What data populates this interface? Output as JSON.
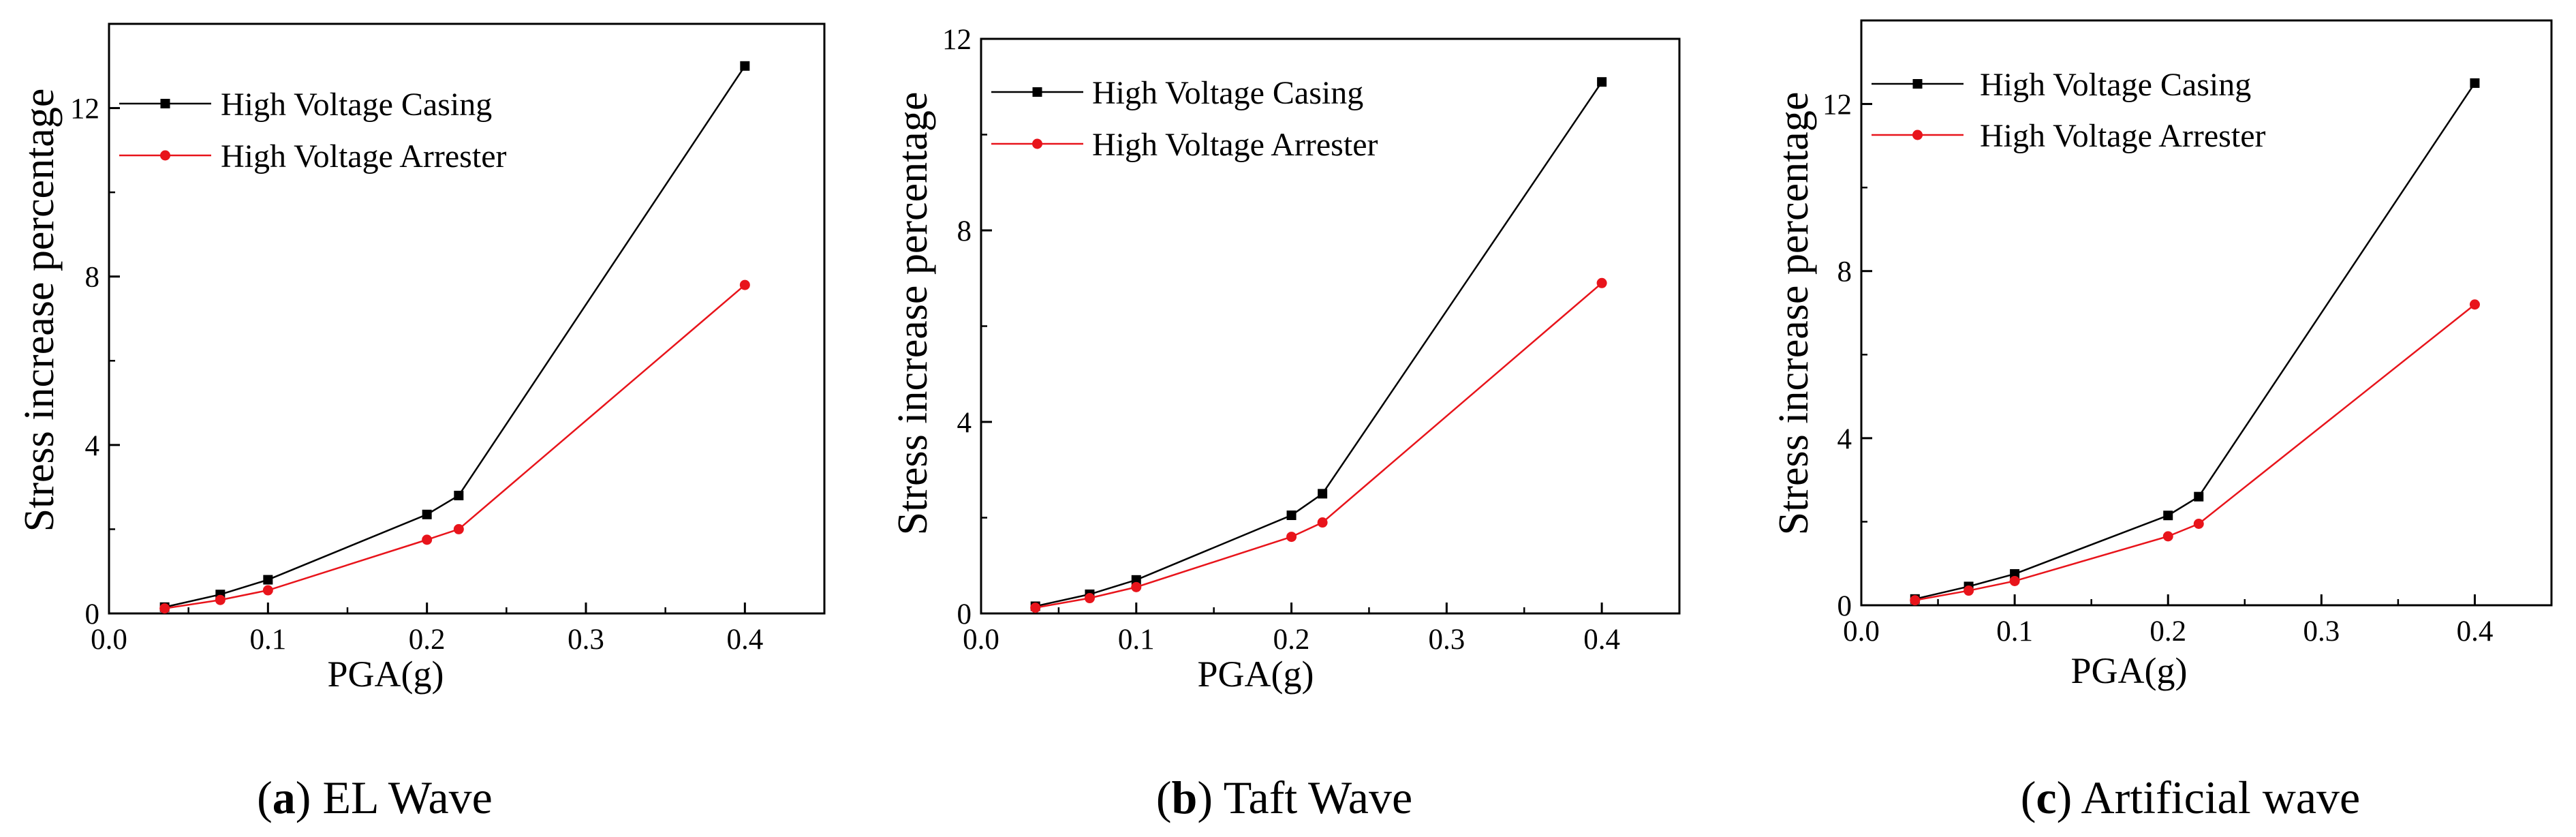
{
  "chart_data": [
    {
      "type": "line",
      "caption_letter": "a",
      "caption_text": "EL Wave",
      "xlabel": "PGA(g)",
      "ylabel": "Stress increase percentage",
      "xlim": [
        0.0,
        0.45
      ],
      "ylim": [
        0,
        14
      ],
      "xticks": [
        "0.0",
        "0.1",
        "0.2",
        "0.3",
        "0.4"
      ],
      "yticks": [
        "0",
        "4",
        "8",
        "12"
      ],
      "x": [
        0.035,
        0.07,
        0.1,
        0.2,
        0.22,
        0.4
      ],
      "series": [
        {
          "name": "High Voltage Casing",
          "color": "#000000",
          "marker": "square",
          "values": [
            0.15,
            0.45,
            0.8,
            2.35,
            2.8,
            13.0
          ]
        },
        {
          "name": "High Voltage Arrester",
          "color": "#e8141b",
          "marker": "circle",
          "values": [
            0.12,
            0.32,
            0.55,
            1.75,
            2.0,
            7.8
          ]
        }
      ],
      "legend_position": "top-left",
      "grid": false
    },
    {
      "type": "line",
      "caption_letter": "b",
      "caption_text": "Taft Wave",
      "xlabel": "PGA(g)",
      "ylabel": "Stress increase percentage",
      "xlim": [
        0.0,
        0.45
      ],
      "ylim": [
        0,
        12
      ],
      "xticks": [
        "0.0",
        "0.1",
        "0.2",
        "0.3",
        "0.4"
      ],
      "yticks": [
        "0",
        "4",
        "8",
        "12"
      ],
      "x": [
        0.035,
        0.07,
        0.1,
        0.2,
        0.22,
        0.4
      ],
      "series": [
        {
          "name": "High Voltage Casing",
          "color": "#000000",
          "marker": "square",
          "values": [
            0.15,
            0.4,
            0.7,
            2.05,
            2.5,
            11.1
          ]
        },
        {
          "name": "High Voltage Arrester",
          "color": "#e8141b",
          "marker": "circle",
          "values": [
            0.12,
            0.32,
            0.55,
            1.6,
            1.9,
            6.9
          ]
        }
      ],
      "legend_position": "top-left",
      "grid": false
    },
    {
      "type": "line",
      "caption_letter": "c",
      "caption_text": "Artificial wave",
      "xlabel": "PGA(g)",
      "ylabel": "Stress increase percentage",
      "xlim": [
        0.0,
        0.45
      ],
      "ylim": [
        0,
        14
      ],
      "xticks": [
        "0.0",
        "0.1",
        "0.2",
        "0.3",
        "0.4"
      ],
      "yticks": [
        "0",
        "4",
        "8",
        "12"
      ],
      "x": [
        0.035,
        0.07,
        0.1,
        0.2,
        0.22,
        0.4
      ],
      "series": [
        {
          "name": "High Voltage Casing",
          "color": "#000000",
          "marker": "square",
          "values": [
            0.15,
            0.45,
            0.75,
            2.15,
            2.6,
            12.5
          ]
        },
        {
          "name": "High Voltage Arrester",
          "color": "#e8141b",
          "marker": "circle",
          "values": [
            0.12,
            0.35,
            0.58,
            1.65,
            1.95,
            7.2
          ]
        }
      ],
      "legend_position": "top-left",
      "grid": false
    }
  ]
}
